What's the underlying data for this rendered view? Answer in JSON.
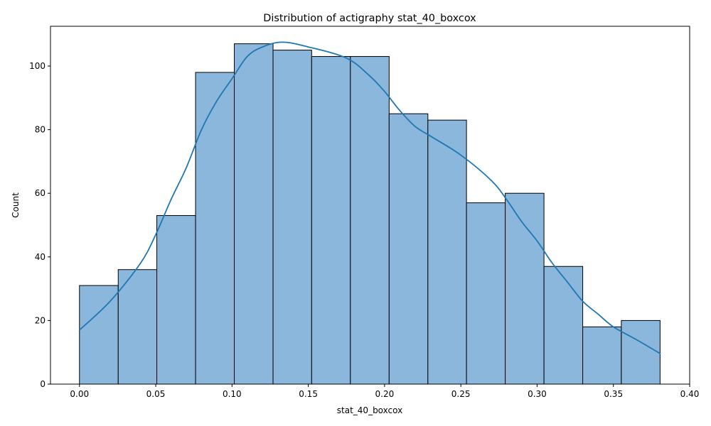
{
  "chart_data": {
    "type": "bar",
    "subtype": "histogram-with-kde",
    "title": "Distribution of actigraphy stat_40_boxcox",
    "xlabel": "stat_40_boxcox",
    "ylabel": "Count",
    "xlim": [
      -0.019,
      0.4
    ],
    "ylim": [
      0,
      112.5
    ],
    "xticks": [
      0.0,
      0.05,
      0.1,
      0.15,
      0.2,
      0.25,
      0.3,
      0.35,
      0.4
    ],
    "xtick_labels": [
      "0.00",
      "0.05",
      "0.10",
      "0.15",
      "0.20",
      "0.25",
      "0.30",
      "0.35",
      "0.40"
    ],
    "yticks": [
      0,
      20,
      40,
      60,
      80,
      100
    ],
    "ytick_labels": [
      "0",
      "20",
      "40",
      "60",
      "80",
      "100"
    ],
    "bins": [
      {
        "x0": 0.0,
        "x1": 0.0254,
        "count": 31
      },
      {
        "x0": 0.0254,
        "x1": 0.0507,
        "count": 36
      },
      {
        "x0": 0.0507,
        "x1": 0.0761,
        "count": 53
      },
      {
        "x0": 0.0761,
        "x1": 0.1015,
        "count": 98
      },
      {
        "x0": 0.1015,
        "x1": 0.1269,
        "count": 107
      },
      {
        "x0": 0.1269,
        "x1": 0.1522,
        "count": 105
      },
      {
        "x0": 0.1522,
        "x1": 0.1776,
        "count": 103
      },
      {
        "x0": 0.1776,
        "x1": 0.203,
        "count": 103
      },
      {
        "x0": 0.203,
        "x1": 0.2284,
        "count": 85
      },
      {
        "x0": 0.2284,
        "x1": 0.2537,
        "count": 83
      },
      {
        "x0": 0.2537,
        "x1": 0.2791,
        "count": 57
      },
      {
        "x0": 0.2791,
        "x1": 0.3045,
        "count": 60
      },
      {
        "x0": 0.3045,
        "x1": 0.3299,
        "count": 37
      },
      {
        "x0": 0.3299,
        "x1": 0.3552,
        "count": 18
      },
      {
        "x0": 0.3552,
        "x1": 0.3806,
        "count": 20
      }
    ],
    "kde": {
      "x": [
        0.0,
        0.02,
        0.04,
        0.05,
        0.06,
        0.07,
        0.08,
        0.09,
        0.1,
        0.11,
        0.12,
        0.133,
        0.15,
        0.175,
        0.19,
        0.2,
        0.21,
        0.22,
        0.23,
        0.25,
        0.27,
        0.28,
        0.29,
        0.3,
        0.31,
        0.32,
        0.33,
        0.34,
        0.35,
        0.365,
        0.381
      ],
      "y": [
        17,
        26,
        38,
        47,
        58,
        68,
        80,
        89,
        96,
        103,
        106,
        107.5,
        106,
        102.5,
        97,
        92,
        86,
        81,
        78,
        72,
        64,
        58,
        51,
        45,
        38,
        32,
        26,
        22,
        18,
        14,
        9.5
      ]
    },
    "grid": false,
    "legend": "none",
    "colors": {
      "bar_fill": "#8ab7db",
      "bar_edge": "#000000",
      "kde_line": "#1f77b4"
    }
  }
}
